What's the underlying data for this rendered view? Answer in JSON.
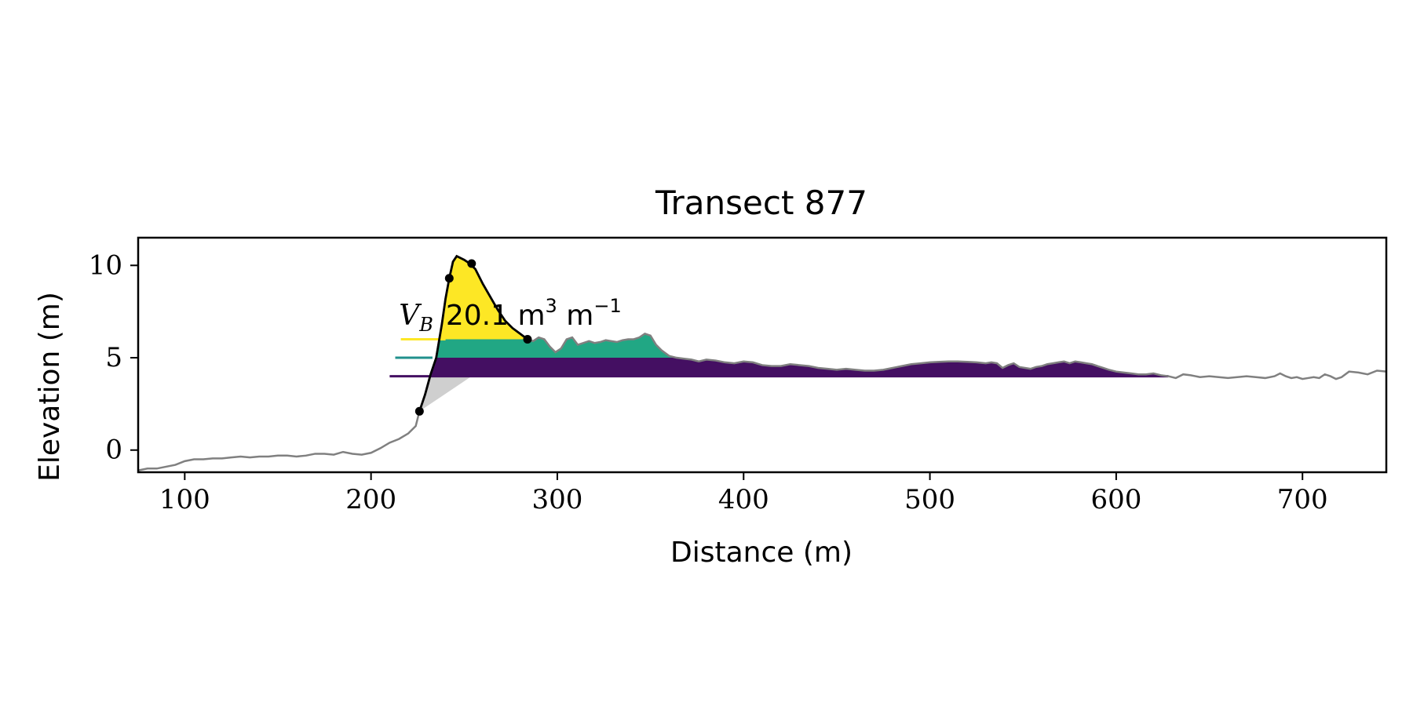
{
  "chart_data": {
    "type": "area",
    "title": "Transect 877",
    "xlabel": "Distance (m)",
    "ylabel": "Elevation (m)",
    "xlim": [
      75,
      745
    ],
    "ylim": [
      -1.2,
      11.5
    ],
    "xticks": [
      100,
      200,
      300,
      400,
      500,
      600,
      700
    ],
    "yticks": [
      0,
      5,
      10
    ],
    "grid": false,
    "legend": "none",
    "annotation": {
      "text_symbol": "V",
      "text_sub": "B",
      "text_value": "20.1 m",
      "text_sup1": "3",
      "text_unit": " m",
      "text_sup2": "−1",
      "x": 215,
      "y": 6.2
    },
    "colors": {
      "profile": "#808080",
      "dune": "#000000",
      "level_high": "#fde725",
      "level_mid": "#21a784",
      "level_low": "#440f62",
      "level_mid_line": "#21908d",
      "base_wedge": "#cfcfcf"
    },
    "levels": [
      {
        "y": 4.0,
        "x_start": 210,
        "x_end": 628,
        "color_key": "level_low"
      },
      {
        "y": 5.0,
        "x_start": 213,
        "x_end": 366,
        "color_key": "level_mid"
      },
      {
        "y": 6.0,
        "x_start": 216,
        "x_end": 284,
        "color_key": "level_high"
      }
    ],
    "dune_profile": {
      "x": [
        226,
        229,
        232,
        235,
        238,
        240,
        242,
        244,
        246,
        248,
        250,
        253,
        256,
        260,
        264,
        268,
        272,
        276,
        280,
        284
      ],
      "y": [
        2.1,
        3.0,
        4.1,
        5.0,
        6.8,
        8.2,
        9.3,
        10.2,
        10.5,
        10.4,
        10.3,
        10.1,
        9.8,
        9.0,
        8.3,
        7.6,
        7.0,
        6.6,
        6.3,
        6.0
      ]
    },
    "dune_points": {
      "x": [
        226,
        242,
        254,
        284
      ],
      "y": [
        2.1,
        9.3,
        10.1,
        6.0
      ]
    },
    "base_wedge": {
      "x": [
        226,
        254,
        231
      ],
      "y": [
        2.1,
        4.0,
        4.0
      ]
    },
    "profile": {
      "x": [
        75,
        80,
        85,
        90,
        95,
        100,
        105,
        110,
        115,
        120,
        125,
        130,
        135,
        140,
        145,
        150,
        155,
        160,
        165,
        170,
        175,
        180,
        185,
        190,
        195,
        200,
        205,
        210,
        215,
        220,
        224,
        226,
        229,
        232,
        235,
        238,
        240,
        242,
        244,
        246,
        248,
        250,
        253,
        256,
        260,
        264,
        268,
        272,
        276,
        280,
        284,
        287,
        290,
        293,
        296,
        299,
        302,
        305,
        308,
        311,
        314,
        317,
        320,
        323,
        326,
        329,
        332,
        335,
        338,
        341,
        344,
        347,
        350,
        353,
        356,
        360,
        364,
        368,
        372,
        376,
        380,
        385,
        390,
        395,
        400,
        405,
        410,
        415,
        420,
        425,
        430,
        435,
        440,
        445,
        450,
        455,
        460,
        465,
        470,
        475,
        480,
        485,
        490,
        495,
        500,
        505,
        510,
        515,
        520,
        525,
        530,
        533,
        536,
        539,
        542,
        545,
        548,
        551,
        554,
        557,
        560,
        563,
        566,
        569,
        572,
        575,
        578,
        581,
        584,
        587,
        590,
        593,
        596,
        600,
        604,
        608,
        612,
        616,
        620,
        624,
        628,
        632,
        636,
        640,
        645,
        650,
        655,
        660,
        665,
        670,
        675,
        680,
        685,
        688,
        691,
        694,
        697,
        700,
        703,
        706,
        709,
        712,
        715,
        718,
        721,
        725,
        730,
        735,
        740,
        745
      ],
      "y": [
        -1.1,
        -1.0,
        -1.0,
        -0.9,
        -0.8,
        -0.6,
        -0.5,
        -0.5,
        -0.45,
        -0.45,
        -0.4,
        -0.35,
        -0.4,
        -0.35,
        -0.35,
        -0.3,
        -0.3,
        -0.35,
        -0.3,
        -0.2,
        -0.2,
        -0.25,
        -0.1,
        -0.2,
        -0.25,
        -0.15,
        0.1,
        0.4,
        0.6,
        0.9,
        1.3,
        2.1,
        3.0,
        4.1,
        5.0,
        6.8,
        8.2,
        9.3,
        10.2,
        10.5,
        10.4,
        10.3,
        10.1,
        9.8,
        9.0,
        8.3,
        7.6,
        7.0,
        6.6,
        6.3,
        6.0,
        5.9,
        6.1,
        6.0,
        5.6,
        5.3,
        5.5,
        6.0,
        6.1,
        5.7,
        5.8,
        5.9,
        5.8,
        5.85,
        5.95,
        5.9,
        5.85,
        5.95,
        6.0,
        6.0,
        6.1,
        6.3,
        6.2,
        5.7,
        5.4,
        5.1,
        5.0,
        4.95,
        4.9,
        4.8,
        4.9,
        4.85,
        4.75,
        4.7,
        4.8,
        4.75,
        4.6,
        4.55,
        4.55,
        4.65,
        4.6,
        4.55,
        4.45,
        4.4,
        4.35,
        4.4,
        4.35,
        4.3,
        4.3,
        4.35,
        4.45,
        4.55,
        4.65,
        4.7,
        4.75,
        4.78,
        4.8,
        4.8,
        4.78,
        4.75,
        4.7,
        4.75,
        4.7,
        4.45,
        4.6,
        4.7,
        4.5,
        4.45,
        4.4,
        4.5,
        4.55,
        4.65,
        4.7,
        4.75,
        4.8,
        4.7,
        4.8,
        4.75,
        4.7,
        4.65,
        4.55,
        4.45,
        4.35,
        4.25,
        4.2,
        4.15,
        4.1,
        4.1,
        4.15,
        4.05,
        4.0,
        3.9,
        4.1,
        4.05,
        3.95,
        4.0,
        3.95,
        3.9,
        3.95,
        4.0,
        3.95,
        3.9,
        4.0,
        4.15,
        4.0,
        3.9,
        3.95,
        3.85,
        3.9,
        3.95,
        3.9,
        4.1,
        4.0,
        3.85,
        3.95,
        4.25,
        4.2,
        4.1,
        4.3,
        4.25
      ]
    }
  }
}
